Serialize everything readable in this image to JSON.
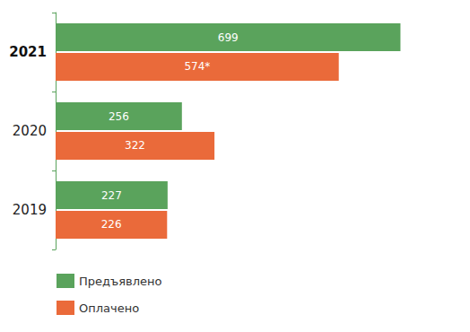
{
  "chart_data": {
    "type": "bar",
    "orientation": "horizontal",
    "categories": [
      "2021",
      "2020",
      "2019"
    ],
    "series": [
      {
        "name": "Предъявлено",
        "color": "#5aa35c",
        "values": [
          699,
          256,
          227
        ]
      },
      {
        "name": "Оплачено",
        "color": "#ea6a3a",
        "values": [
          574,
          322,
          226
        ],
        "value_labels": [
          "574*",
          "322",
          "226"
        ]
      }
    ],
    "xlim": [
      0,
      800
    ],
    "xticks": [
      0,
      200,
      400,
      600,
      800
    ],
    "grid": false,
    "legend": "bottom-left",
    "data_labels": true,
    "tick_labels": "y"
  }
}
